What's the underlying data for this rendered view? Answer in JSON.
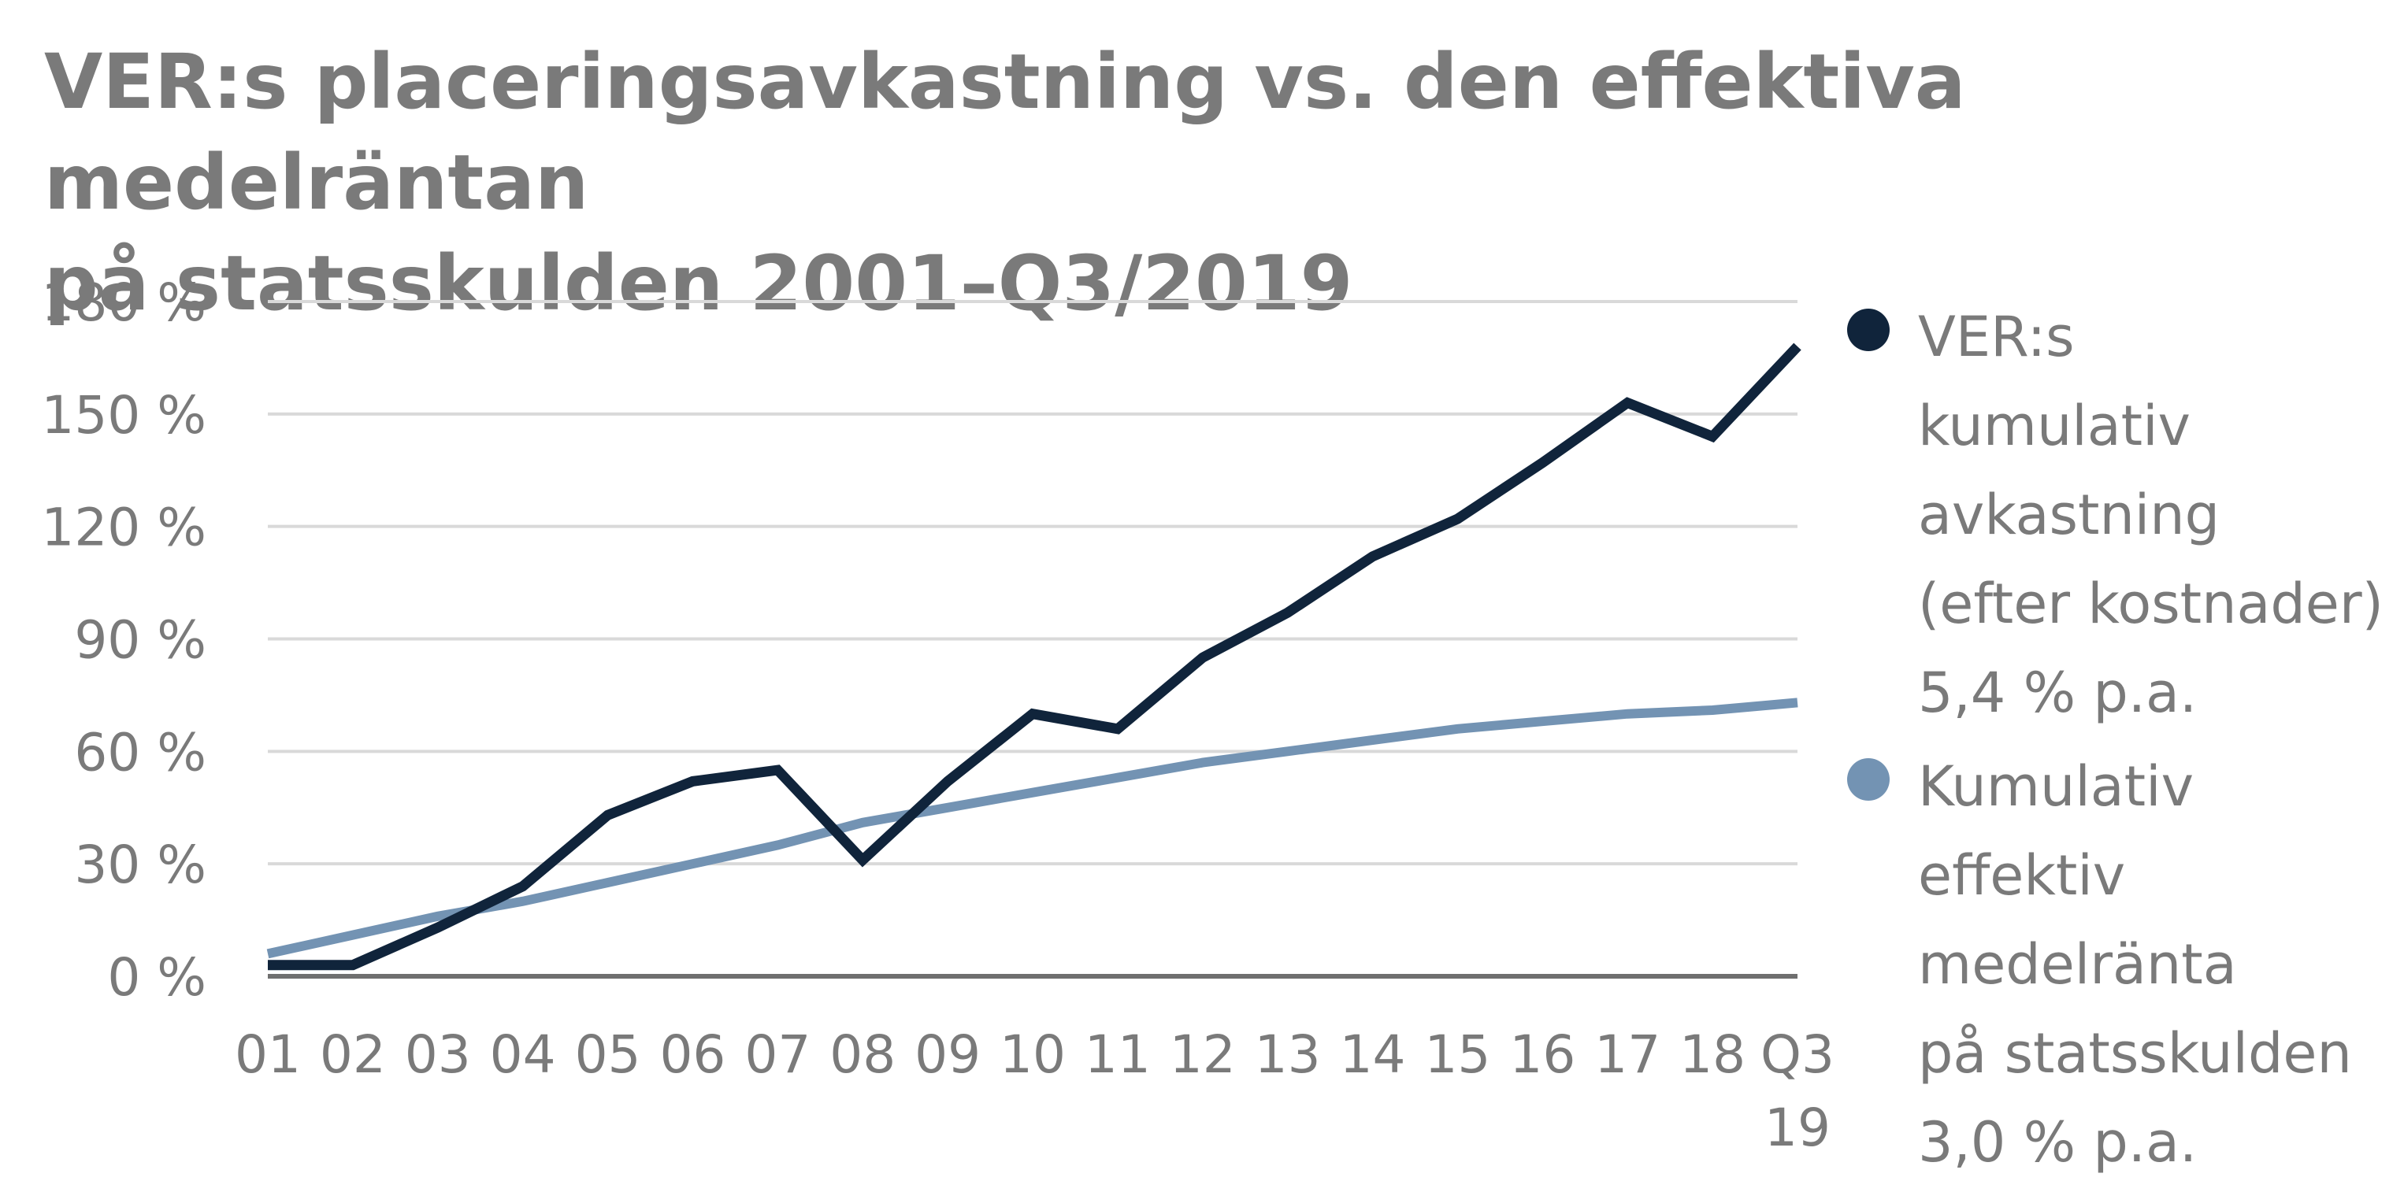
{
  "title": {
    "line1": "VER:s placeringsavkastning vs. den effektiva medelräntan",
    "line2": "på statsskulden 2001–Q3/2019"
  },
  "legend": [
    {
      "color": "#10243b",
      "lines": [
        "VER:s",
        "kumulativ",
        "avkastning",
        "(efter kostnader)",
        "5,4 % p.a."
      ]
    },
    {
      "color": "#7393b3",
      "lines": [
        "Kumulativ",
        "effektiv",
        "medelränta",
        "på statsskulden",
        "3,0 % p.a."
      ]
    }
  ],
  "chart_data": {
    "type": "line",
    "title": "VER:s placeringsavkastning vs. den effektiva medelräntan på statsskulden 2001–Q3/2019",
    "xlabel": "",
    "ylabel": "",
    "categories": [
      "01",
      "02",
      "03",
      "04",
      "05",
      "06",
      "07",
      "08",
      "09",
      "10",
      "11",
      "12",
      "13",
      "14",
      "15",
      "16",
      "17",
      "18",
      "Q3\n19"
    ],
    "ylim": [
      0,
      180
    ],
    "yticks": [
      0,
      30,
      60,
      90,
      120,
      150,
      180
    ],
    "ytick_labels": [
      "0 %",
      "30 %",
      "60 %",
      "90 %",
      "120 %",
      "150 %",
      "180 %"
    ],
    "grid": true,
    "legend_position": "right",
    "series": [
      {
        "name": "VER:s kumulativ avkastning (efter kostnader) 5,4 % p.a.",
        "color": "#10243b",
        "values": [
          3,
          3,
          13,
          24,
          43,
          52,
          55,
          31,
          52,
          70,
          66,
          85,
          97,
          112,
          122,
          137,
          153,
          144,
          168
        ]
      },
      {
        "name": "Kumulativ effektiv medelränta på statsskulden 3,0 % p.a.",
        "color": "#7393b3",
        "values": [
          6,
          11,
          16,
          20,
          25,
          30,
          35,
          41,
          45,
          49,
          53,
          57,
          60,
          63,
          66,
          68,
          70,
          71,
          73
        ]
      }
    ]
  }
}
